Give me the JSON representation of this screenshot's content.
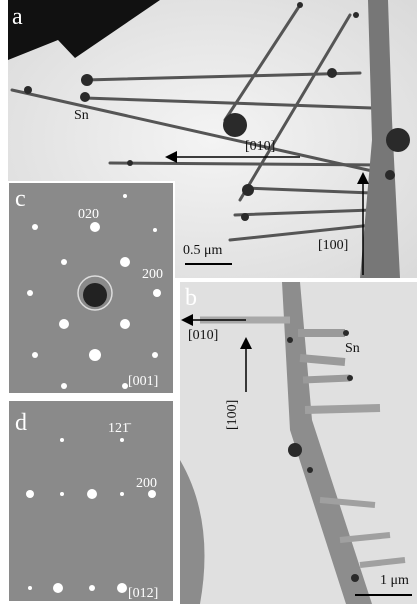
{
  "panels": {
    "a": {
      "label": "a",
      "annotations": [
        "Sn",
        "[010]",
        "[100]"
      ],
      "scale_bar": "0.5 μm"
    },
    "b": {
      "label": "b",
      "annotations": [
        "Sn",
        "[010]",
        "[100]"
      ],
      "scale_bar": "1 μm"
    },
    "c": {
      "label": "c",
      "spot_indices": [
        "020",
        "200"
      ],
      "zone_axis": "[001]"
    },
    "d": {
      "label": "d",
      "spot_indices": [
        "121̄",
        "200"
      ],
      "zone_axis": "[012]"
    }
  }
}
